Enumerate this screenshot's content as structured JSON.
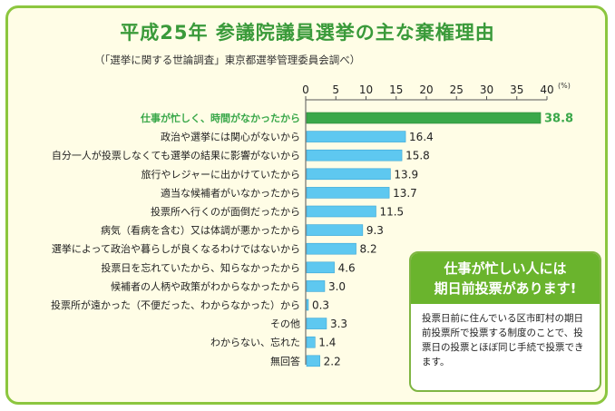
{
  "header": {
    "title": "平成25年 参議院議員選挙の主な棄権理由",
    "subtitle": "（「選挙に関する世論調査」東京都選挙管理委員会調べ）"
  },
  "chart_data": {
    "type": "bar",
    "orientation": "horizontal",
    "unit": "(%)",
    "xlim": [
      0,
      40
    ],
    "ticks": [
      0,
      5,
      10,
      15,
      20,
      25,
      30,
      35,
      40
    ],
    "highlight_index": 0,
    "colors": {
      "bar": "#5ec8f0",
      "highlight": "#3aa84a",
      "highlight_text": "#3aa84a"
    },
    "categories": [
      "仕事が忙しく、時間がなかったから",
      "政治や選挙には関心がないから",
      "自分一人が投票しなくても選挙の結果に影響がないから",
      "旅行やレジャーに出かけていたから",
      "適当な候補者がいなかったから",
      "投票所へ行くのが面倒だったから",
      "病気（看病を含む）又は体調が悪かったから",
      "選挙によって政治や暮らしが良くなるわけではないから",
      "投票日を忘れていたから、知らなかったから",
      "候補者の人柄や政策がわからなかったから",
      "投票所が遠かった（不便だった、わからなかった）から",
      "その他",
      "わからない、忘れた",
      "無回答"
    ],
    "values": [
      38.8,
      16.4,
      15.8,
      13.9,
      13.7,
      11.5,
      9.3,
      8.2,
      4.6,
      3.0,
      0.3,
      3.3,
      1.4,
      2.2
    ],
    "value_labels": [
      "38.8",
      "16.4",
      "15.8",
      "13.9",
      "13.7",
      "11.5",
      "9.3",
      "8.2",
      "4.6",
      "3.0",
      "0.3",
      "3.3",
      "1.4",
      "2.2"
    ]
  },
  "callout": {
    "heading_line1": "仕事が忙しい人には",
    "heading_line2": "期日前投票があります!",
    "body": "投票日前に住んでいる区市町村の期日前投票所で投票する制度のことで、投票日の投票とほぼ同じ手続で投票できます。"
  }
}
